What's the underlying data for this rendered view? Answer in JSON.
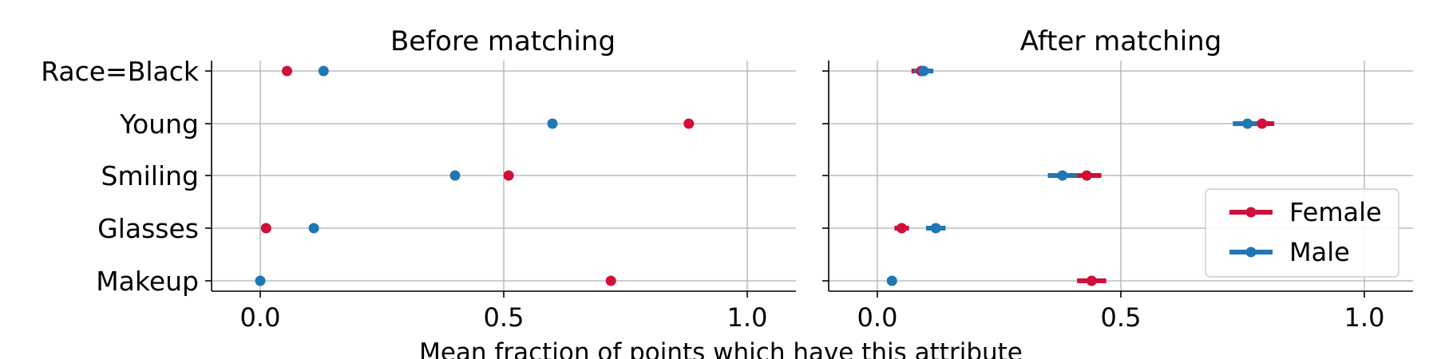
{
  "chart_data": {
    "type": "dot-errorbar",
    "xlabel": "Mean fraction of points which have this attribute",
    "categories": [
      "Race=Black",
      "Young",
      "Smiling",
      "Glasses",
      "Makeup"
    ],
    "xticks": [
      "0.0",
      "0.5",
      "1.0"
    ],
    "xlim": [
      -0.1,
      1.1
    ],
    "grid": true,
    "legend": {
      "placement": "lower-right",
      "entries": [
        "Female",
        "Male"
      ]
    },
    "colors": {
      "Female": "#d0103a",
      "Male": "#1f77b4"
    },
    "panels": [
      {
        "title": "Before matching",
        "series": [
          {
            "name": "Female",
            "values": [
              0.055,
              0.88,
              0.51,
              0.012,
              0.72
            ],
            "err": [
              0,
              0,
              0,
              0,
              0
            ]
          },
          {
            "name": "Male",
            "values": [
              0.13,
              0.6,
              0.4,
              0.11,
              0.0
            ],
            "err": [
              0,
              0,
              0,
              0,
              0
            ]
          }
        ]
      },
      {
        "title": "After matching",
        "series": [
          {
            "name": "Female",
            "values": [
              0.09,
              0.79,
              0.43,
              0.05,
              0.44
            ],
            "err": [
              0.02,
              0.025,
              0.03,
              0.015,
              0.03
            ]
          },
          {
            "name": "Male",
            "values": [
              0.095,
              0.76,
              0.38,
              0.12,
              0.03
            ],
            "err": [
              0.02,
              0.03,
              0.03,
              0.02,
              0.01
            ]
          }
        ]
      }
    ]
  }
}
